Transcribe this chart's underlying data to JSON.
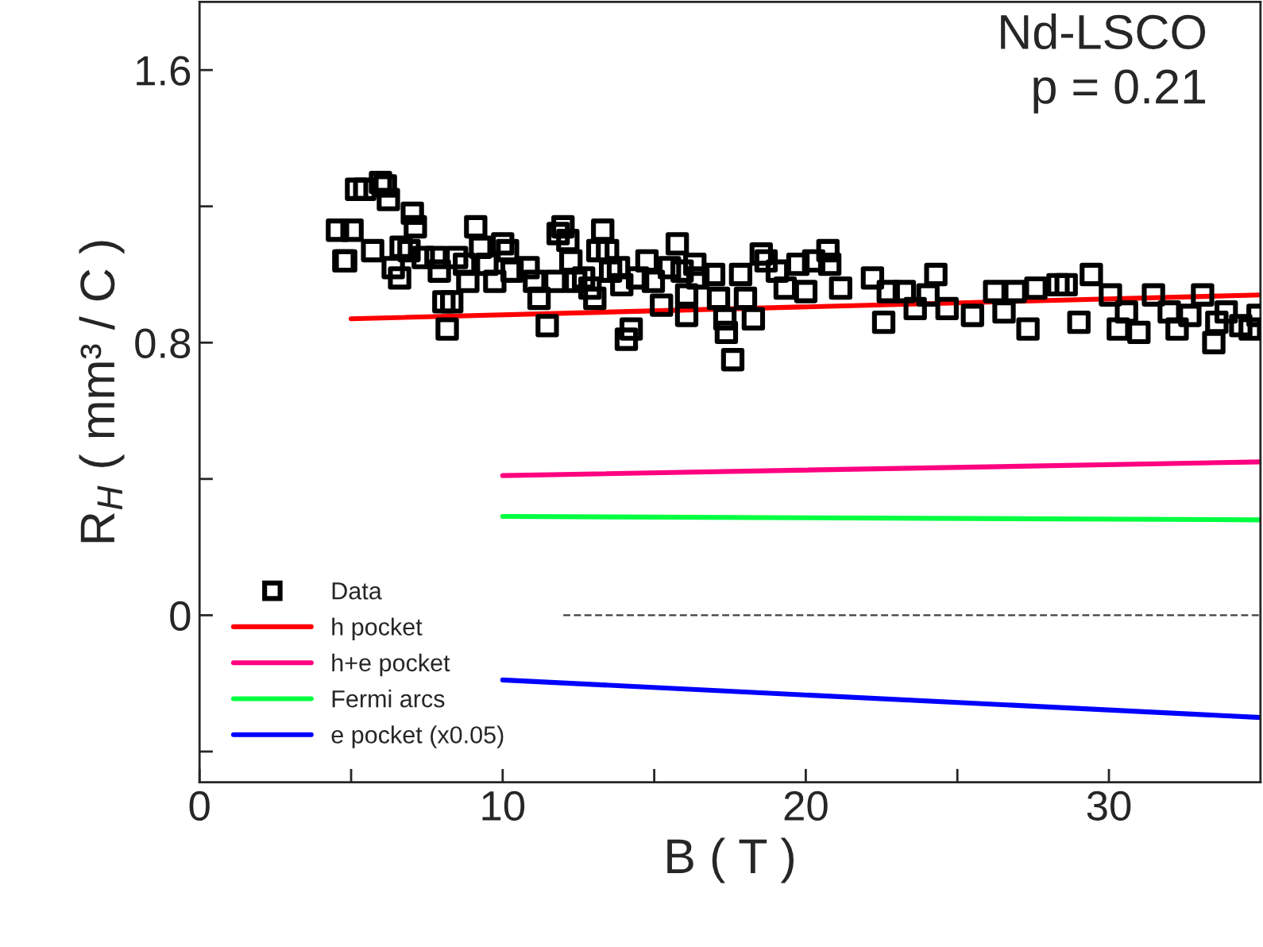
{
  "chart_data": {
    "type": "scatter",
    "xlabel": "B ( T )",
    "ylabel": "R$_{H}$ ( mm³ / C )",
    "annotations": [
      "Nd-LSCO",
      "p = 0.21"
    ],
    "xlim": [
      0,
      35
    ],
    "ylim": [
      -0.49,
      1.8
    ],
    "xticks": [
      0,
      {
        "value": 5,
        "label": null
      },
      10,
      {
        "value": 15,
        "label": null
      },
      20,
      {
        "value": 25,
        "label": null
      },
      30
    ],
    "yticks": [
      {
        "value": -0.4,
        "label": null
      },
      0,
      {
        "value": 0.4,
        "label": null
      },
      0.8,
      {
        "value": 1.2,
        "label": null
      },
      1.6
    ],
    "grid": false,
    "legend": "bottom left",
    "series": [
      {
        "name": "Data",
        "marker": "square",
        "color": "#000000",
        "x": [
          5.18,
          5.45,
          5.97,
          6.13,
          6.23,
          4.55,
          5.03,
          4.76,
          4.82,
          5.71,
          6.39,
          6.6,
          6.65,
          6.91,
          7.02,
          7.12,
          7.38,
          7.8,
          7.91,
          8.06,
          8.32,
          8.17,
          8.48,
          8.74,
          8.85,
          9.11,
          9.27,
          9.48,
          9.74,
          10.0,
          10.16,
          10.31,
          10.84,
          11.05,
          11.2,
          11.47,
          11.73,
          11.83,
          11.99,
          12.15,
          12.25,
          12.41,
          12.67,
          12.88,
          13.04,
          13.14,
          13.3,
          13.46,
          13.56,
          13.82,
          13.93,
          14.24,
          14.08,
          14.45,
          14.76,
          14.97,
          15.24,
          15.5,
          15.76,
          15.92,
          16.07,
          16.07,
          16.34,
          16.44,
          16.96,
          17.12,
          17.33,
          17.38,
          17.59,
          17.85,
          18.01,
          18.27,
          18.53,
          18.69,
          19.06,
          19.32,
          19.74,
          20.0,
          20.26,
          20.73,
          20.79,
          21.15,
          22.2,
          22.57,
          22.72,
          23.25,
          23.61,
          24.03,
          24.29,
          24.66,
          25.5,
          26.23,
          26.54,
          26.91,
          27.33,
          27.59,
          28.32,
          28.59,
          29.01,
          29.42,
          30.05,
          30.31,
          30.58,
          30.99,
          31.47,
          31.99,
          32.25,
          32.67,
          33.09,
          33.46,
          33.56,
          33.87,
          34.35,
          34.66,
          34.92
        ],
        "values": [
          1.25,
          1.25,
          1.27,
          1.26,
          1.22,
          1.13,
          1.13,
          1.04,
          1.04,
          1.07,
          1.02,
          0.99,
          1.08,
          1.07,
          1.18,
          1.14,
          1.05,
          1.05,
          1.01,
          0.92,
          0.92,
          0.84,
          1.05,
          1.03,
          0.98,
          1.14,
          1.08,
          1.03,
          0.98,
          1.09,
          1.07,
          1.01,
          1.02,
          0.98,
          0.93,
          0.85,
          0.98,
          1.12,
          1.14,
          1.1,
          1.04,
          0.98,
          0.99,
          0.96,
          0.93,
          1.07,
          1.13,
          1.07,
          1.01,
          1.02,
          0.97,
          0.84,
          0.81,
          0.99,
          1.04,
          0.98,
          0.91,
          1.02,
          1.09,
          1.01,
          0.94,
          0.88,
          1.03,
          0.99,
          1.0,
          0.93,
          0.87,
          0.83,
          0.75,
          1.0,
          0.93,
          0.87,
          1.06,
          1.04,
          1.01,
          0.96,
          1.03,
          0.95,
          1.04,
          1.07,
          1.03,
          0.96,
          0.99,
          0.86,
          0.95,
          0.95,
          0.9,
          0.94,
          1.0,
          0.9,
          0.88,
          0.95,
          0.89,
          0.95,
          0.84,
          0.96,
          0.97,
          0.97,
          0.86,
          1.0,
          0.94,
          0.84,
          0.89,
          0.83,
          0.94,
          0.89,
          0.84,
          0.88,
          0.94,
          0.8,
          0.86,
          0.89,
          0.85,
          0.84,
          0.88
        ]
      },
      {
        "name": "h pocket",
        "type": "line",
        "marker": "none",
        "line_style": "solid",
        "color": "#ff0000",
        "x": [
          5,
          35
        ],
        "values": [
          0.87,
          0.94
        ]
      },
      {
        "name": "h+e pocket",
        "type": "line",
        "marker": "none",
        "line_style": "solid",
        "color": "#ff0080",
        "x": [
          10,
          35
        ],
        "values": [
          0.41,
          0.45
        ]
      },
      {
        "name": "Fermi arcs",
        "type": "line",
        "marker": "none",
        "line_style": "solid",
        "color": "#00ff40",
        "x": [
          10,
          35
        ],
        "values": [
          0.29,
          0.28
        ]
      },
      {
        "name": "e pocket (x0.05)",
        "type": "line",
        "marker": "none",
        "line_style": "solid",
        "color": "#0000ff",
        "x": [
          10,
          35
        ],
        "values": [
          -0.19,
          -0.3
        ]
      },
      {
        "type": "line",
        "marker": "none",
        "line_style": "dashed",
        "color": "#404040",
        "x": [
          12,
          35
        ],
        "values": [
          0,
          0
        ]
      }
    ]
  }
}
